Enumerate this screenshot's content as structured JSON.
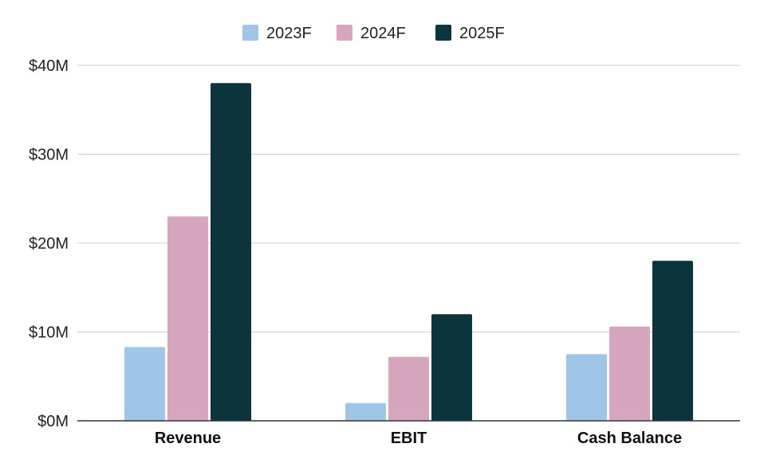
{
  "chart_data": {
    "type": "bar",
    "categories": [
      "Revenue",
      "EBIT",
      "Cash Balance"
    ],
    "series": [
      {
        "name": "2023F",
        "values": [
          8.3,
          2.0,
          7.5
        ],
        "color": "#9fc5e8"
      },
      {
        "name": "2024F",
        "values": [
          23.0,
          7.2,
          10.6
        ],
        "color": "#d5a6bd"
      },
      {
        "name": "2025F",
        "values": [
          38.0,
          12.0,
          18.0
        ],
        "color": "#0c343d"
      }
    ],
    "title": "",
    "xlabel": "",
    "ylabel": "",
    "ylim": [
      0,
      40
    ],
    "yticks": [
      0,
      10,
      20,
      30,
      40
    ],
    "ytick_labels": [
      "$0M",
      "$10M",
      "$20M",
      "$30M",
      "$40M"
    ],
    "grid": true,
    "legend_position": "top-center",
    "colors": {
      "gridline": "#cccccc",
      "axis": "#333333"
    }
  }
}
